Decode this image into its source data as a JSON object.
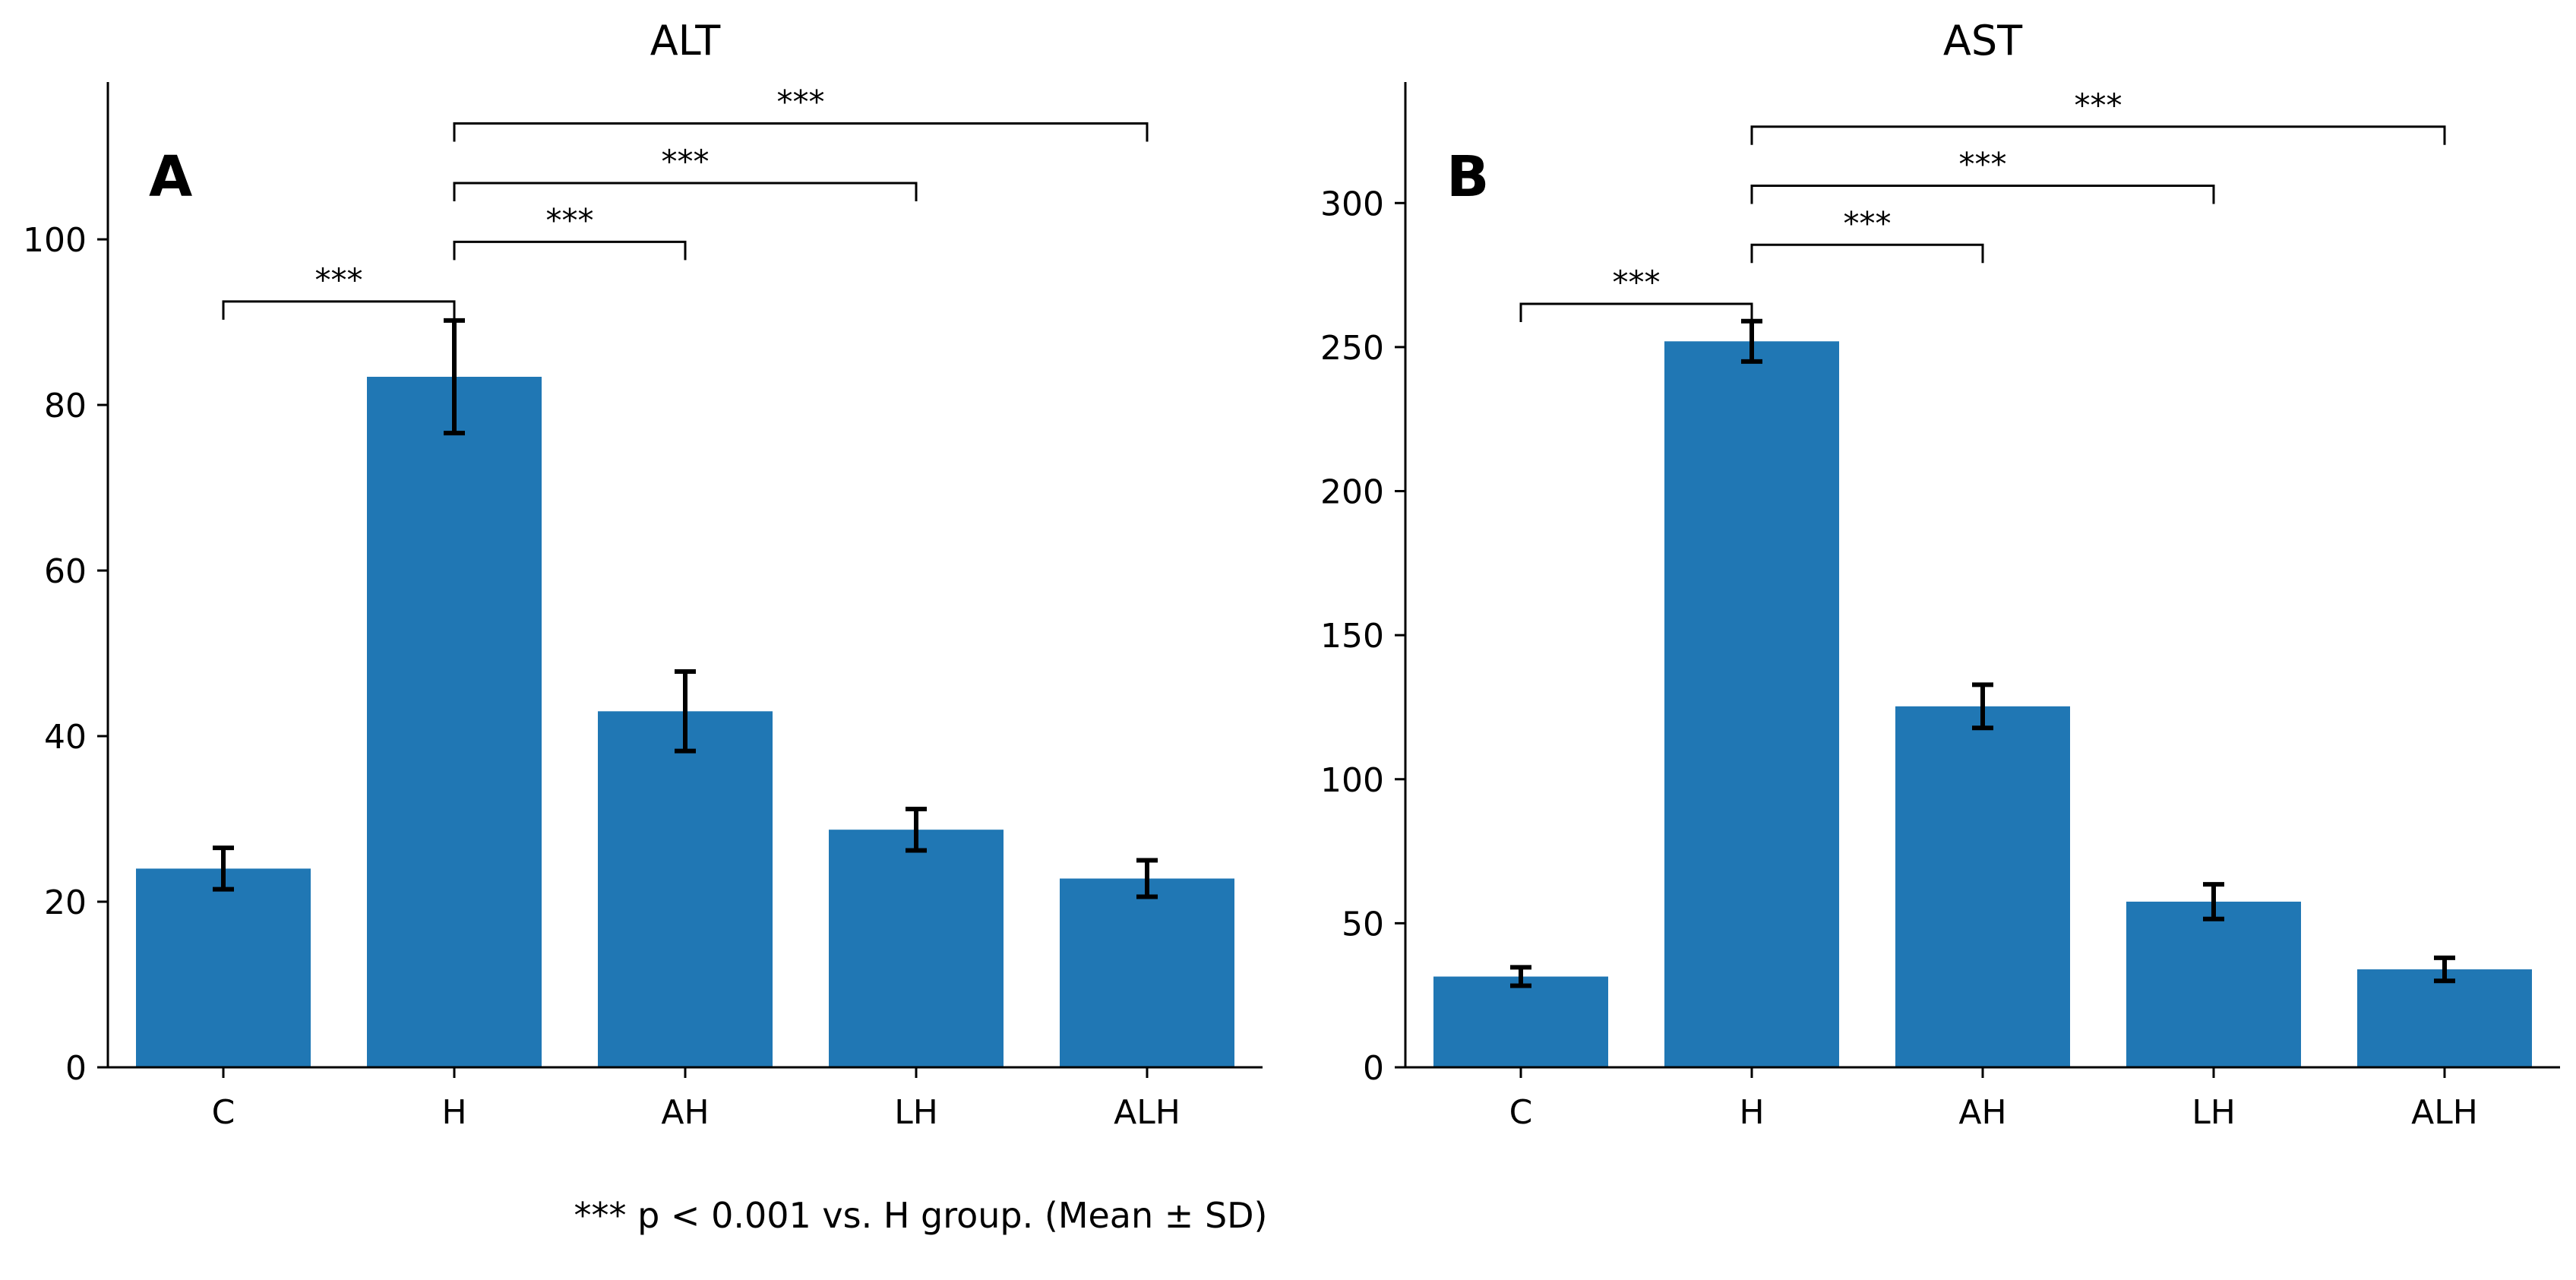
{
  "figure": {
    "footnote": "*** p < 0.001 vs. H group. (Mean ± SD)"
  },
  "chart_data": [
    {
      "type": "bar",
      "panel_label": "A",
      "title": "ALT",
      "xlabel": "",
      "ylabel": "",
      "categories": [
        "C",
        "H",
        "AH",
        "LH",
        "ALH"
      ],
      "values": [
        24,
        83.4,
        43,
        28.7,
        22.8
      ],
      "errors": [
        2.5,
        6.8,
        4.8,
        2.5,
        2.2
      ],
      "ylim": [
        0,
        119
      ],
      "yticks": [
        0,
        20,
        40,
        60,
        80,
        100
      ],
      "bar_color": "#2077b4",
      "grid": false,
      "legend": "none",
      "significance": [
        {
          "from": "C",
          "to": "H",
          "label": "***",
          "y": 92.5
        },
        {
          "from": "H",
          "to": "AH",
          "label": "***",
          "y": 99.7
        },
        {
          "from": "H",
          "to": "LH",
          "label": "***",
          "y": 106.8
        },
        {
          "from": "H",
          "to": "ALH",
          "label": "***",
          "y": 114
        }
      ]
    },
    {
      "type": "bar",
      "panel_label": "B",
      "title": "AST",
      "xlabel": "",
      "ylabel": "",
      "categories": [
        "C",
        "H",
        "AH",
        "LH",
        "ALH"
      ],
      "values": [
        31.5,
        252,
        125.3,
        57.5,
        34
      ],
      "errors": [
        3.2,
        7,
        7.5,
        6,
        4
      ],
      "ylim": [
        0,
        342
      ],
      "yticks": [
        0,
        50,
        100,
        150,
        200,
        250,
        300
      ],
      "bar_color": "#2077b4",
      "grid": false,
      "legend": "none",
      "significance": [
        {
          "from": "C",
          "to": "H",
          "label": "***",
          "y": 265
        },
        {
          "from": "H",
          "to": "AH",
          "label": "***",
          "y": 285.5
        },
        {
          "from": "H",
          "to": "LH",
          "label": "***",
          "y": 306
        },
        {
          "from": "H",
          "to": "ALH",
          "label": "***",
          "y": 326.5
        }
      ]
    }
  ]
}
